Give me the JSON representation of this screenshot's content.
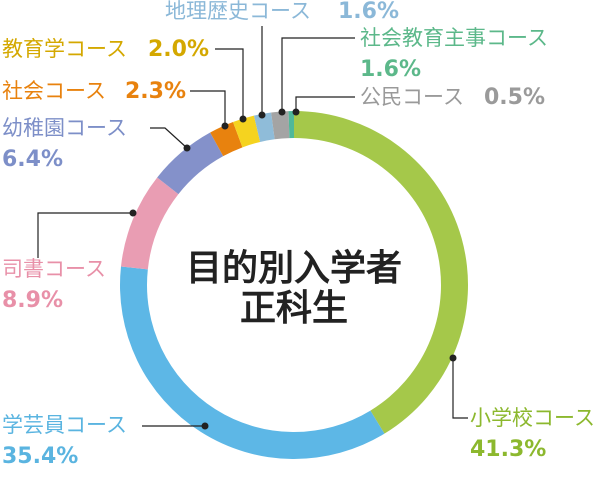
{
  "chart_data": {
    "type": "donut",
    "title": "目的別入学者",
    "subtitle": "正科生",
    "categories": [
      "小学校コース",
      "学芸員コース",
      "司書コース",
      "幼稚園コース",
      "社会コース",
      "教育学コース",
      "地理歴史コース",
      "社会教育主事コース",
      "公民コース"
    ],
    "values": [
      41.3,
      35.4,
      8.9,
      6.4,
      2.3,
      2.0,
      1.6,
      1.6,
      0.5
    ],
    "value_labels": [
      "41.3%",
      "35.4%",
      "8.9%",
      "6.4%",
      "2.3%",
      "2.0%",
      "1.6%",
      "1.6%",
      "0.5%"
    ],
    "colors": [
      "#a5c84a",
      "#5db7e6",
      "#e99db3",
      "#8491ca",
      "#e8820e",
      "#f5d31f",
      "#8fbcd9",
      "#a4a4a4",
      "#4fb89a"
    ],
    "label_colors": [
      "#8cb82e",
      "#5ab4e0",
      "#e890a8",
      "#7d8fc8",
      "#e8820e",
      "#d4a800",
      "#8bb8d8",
      "#5cb88a",
      "#9a9a9a"
    ]
  }
}
